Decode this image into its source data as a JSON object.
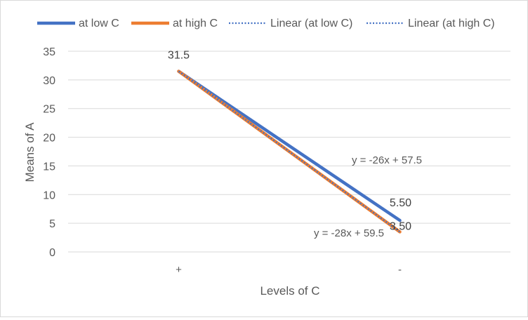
{
  "chart_data": {
    "type": "line",
    "categories": [
      "+",
      "-"
    ],
    "series": [
      {
        "name": "at low C",
        "values": [
          31.5,
          5.5
        ],
        "color": "#4472C4",
        "style": "solid"
      },
      {
        "name": "at high C",
        "values": [
          31.5,
          3.5
        ],
        "color": "#ED7D31",
        "style": "solid"
      },
      {
        "name": "Linear (at low C)",
        "values": [
          31.5,
          5.5
        ],
        "color": "#4472C4",
        "style": "dotted",
        "trendline_of": "at low C"
      },
      {
        "name": "Linear (at high C)",
        "values": [
          31.5,
          3.5
        ],
        "color": "#4472C4",
        "style": "dotted",
        "trendline_of": "at high C"
      }
    ],
    "data_labels": [
      {
        "series": "at low C",
        "index": 0,
        "text": "31.5"
      },
      {
        "series": "at low C",
        "index": 1,
        "text": "5.50"
      },
      {
        "series": "at high C",
        "index": 1,
        "text": "3.50"
      }
    ],
    "trendline_equations": [
      {
        "series": "at low C",
        "text": "y = -26x + 57.5"
      },
      {
        "series": "at high C",
        "text": "y = -28x + 59.5"
      }
    ],
    "xlabel": "Levels of C",
    "ylabel": "Means of A",
    "ylim": [
      0,
      35
    ],
    "yticks": [
      0,
      5,
      10,
      15,
      20,
      25,
      30,
      35
    ],
    "grid": true,
    "legend_position": "top",
    "axis_text_color": "#595959",
    "gridline_color": "#d9d9d9"
  }
}
